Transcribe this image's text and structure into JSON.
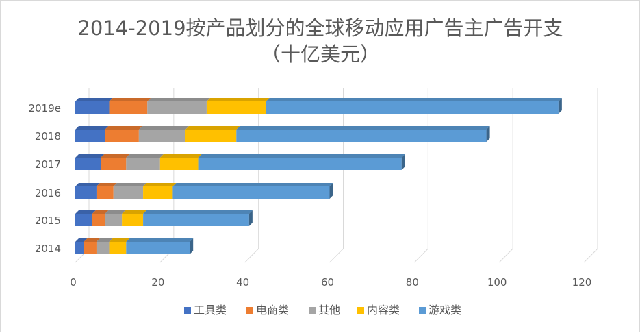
{
  "chart_data": {
    "type": "bar",
    "orientation": "horizontal",
    "stacked": true,
    "three_d": true,
    "title_lines": [
      "2014-2019按产品划分的全球移动应用广告主广告开支",
      "（十亿美元）"
    ],
    "categories": [
      "2014",
      "2015",
      "2016",
      "2017",
      "2018",
      "2019e"
    ],
    "series": [
      {
        "name": "工具类",
        "color": "#4472C4",
        "values": [
          2,
          4,
          5,
          6,
          7,
          8
        ]
      },
      {
        "name": "电商类",
        "color": "#ED7D31",
        "values": [
          3,
          3,
          4,
          6,
          8,
          9
        ]
      },
      {
        "name": "其他",
        "color": "#A5A5A5",
        "values": [
          3,
          4,
          7,
          8,
          11,
          14
        ]
      },
      {
        "name": "内容类",
        "color": "#FFC000",
        "values": [
          4,
          5,
          7,
          9,
          12,
          14
        ]
      },
      {
        "name": "游戏类",
        "color": "#5B9BD5",
        "values": [
          15,
          25,
          37,
          48,
          59,
          69
        ]
      }
    ],
    "xlim": [
      0,
      120
    ],
    "xticks": [
      "0",
      "20",
      "40",
      "60",
      "80",
      "100",
      "120"
    ],
    "legend_position": "bottom",
    "grid": true
  }
}
